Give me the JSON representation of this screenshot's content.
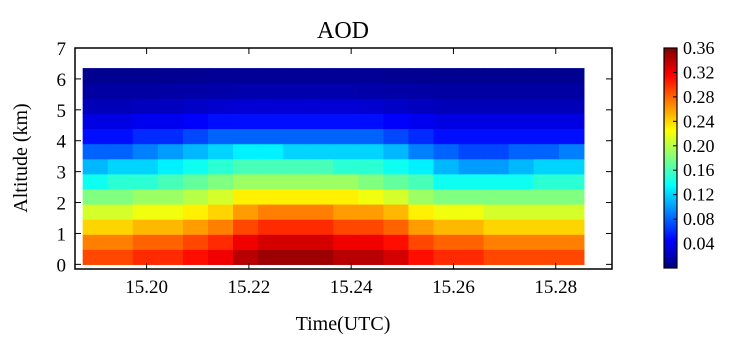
{
  "chart_data": {
    "type": "heatmap",
    "title": "AOD",
    "xlabel": "Time(UTC)",
    "ylabel": "Altitude (km)",
    "xlim": [
      15.186,
      15.291
    ],
    "ylim": [
      -0.15,
      7
    ],
    "x_ticks": [
      15.2,
      15.22,
      15.24,
      15.26,
      15.28
    ],
    "x_tick_labels": [
      "15.20",
      "15.22",
      "15.24",
      "15.26",
      "15.28"
    ],
    "y_ticks": [
      0,
      1,
      2,
      3,
      4,
      5,
      6,
      7
    ],
    "y_tick_labels": [
      "0",
      "1",
      "2",
      "3",
      "4",
      "5",
      "6",
      "7"
    ],
    "data_extent": {
      "x": [
        15.1875,
        15.2855
      ],
      "y": [
        0.0,
        6.35
      ]
    },
    "colormap": "jet",
    "colorbar": {
      "range": [
        0.0,
        0.36
      ],
      "ticks": [
        0.04,
        0.08,
        0.12,
        0.16,
        0.2,
        0.24,
        0.28,
        0.32,
        0.36
      ],
      "tick_labels": [
        "0.04",
        "0.08",
        "0.12",
        "0.16",
        "0.20",
        "0.24",
        "0.28",
        "0.32",
        "0.36"
      ]
    },
    "grid": false,
    "time_columns": [
      15.19,
      15.195,
      15.2,
      15.205,
      15.21,
      15.215,
      15.22,
      15.225,
      15.23,
      15.235,
      15.24,
      15.245,
      15.25,
      15.255,
      15.26,
      15.265,
      15.27,
      15.275,
      15.28,
      15.285
    ],
    "altitude_rows_km": [
      0.0,
      0.5,
      1.0,
      1.5,
      2.0,
      2.5,
      3.0,
      3.5,
      4.0,
      4.5,
      5.0,
      5.5,
      6.0
    ],
    "aod_values": [
      [
        0.29,
        0.29,
        0.3,
        0.3,
        0.31,
        0.32,
        0.34,
        0.35,
        0.35,
        0.35,
        0.34,
        0.34,
        0.33,
        0.31,
        0.3,
        0.3,
        0.29,
        0.29,
        0.29,
        0.29
      ],
      [
        0.27,
        0.27,
        0.28,
        0.28,
        0.29,
        0.3,
        0.32,
        0.33,
        0.33,
        0.33,
        0.32,
        0.32,
        0.31,
        0.29,
        0.28,
        0.28,
        0.27,
        0.27,
        0.27,
        0.27
      ],
      [
        0.24,
        0.24,
        0.25,
        0.25,
        0.26,
        0.27,
        0.29,
        0.3,
        0.3,
        0.3,
        0.29,
        0.29,
        0.28,
        0.26,
        0.25,
        0.25,
        0.24,
        0.24,
        0.24,
        0.24
      ],
      [
        0.21,
        0.21,
        0.22,
        0.22,
        0.23,
        0.24,
        0.26,
        0.27,
        0.27,
        0.27,
        0.26,
        0.26,
        0.25,
        0.23,
        0.22,
        0.22,
        0.21,
        0.21,
        0.21,
        0.21
      ],
      [
        0.18,
        0.18,
        0.19,
        0.19,
        0.2,
        0.21,
        0.23,
        0.23,
        0.23,
        0.23,
        0.23,
        0.22,
        0.21,
        0.19,
        0.18,
        0.18,
        0.18,
        0.18,
        0.18,
        0.18
      ],
      [
        0.14,
        0.15,
        0.15,
        0.16,
        0.17,
        0.18,
        0.19,
        0.19,
        0.19,
        0.19,
        0.19,
        0.18,
        0.17,
        0.16,
        0.14,
        0.14,
        0.14,
        0.14,
        0.15,
        0.15
      ],
      [
        0.11,
        0.12,
        0.12,
        0.13,
        0.14,
        0.15,
        0.16,
        0.16,
        0.16,
        0.16,
        0.15,
        0.15,
        0.14,
        0.13,
        0.11,
        0.1,
        0.1,
        0.11,
        0.12,
        0.12
      ],
      [
        0.08,
        0.08,
        0.09,
        0.1,
        0.11,
        0.12,
        0.13,
        0.13,
        0.12,
        0.12,
        0.12,
        0.12,
        0.11,
        0.09,
        0.08,
        0.07,
        0.07,
        0.08,
        0.08,
        0.09
      ],
      [
        0.05,
        0.05,
        0.06,
        0.06,
        0.07,
        0.08,
        0.08,
        0.08,
        0.08,
        0.08,
        0.08,
        0.08,
        0.07,
        0.06,
        0.05,
        0.05,
        0.05,
        0.05,
        0.05,
        0.05
      ],
      [
        0.035,
        0.035,
        0.04,
        0.04,
        0.045,
        0.05,
        0.05,
        0.05,
        0.05,
        0.05,
        0.05,
        0.05,
        0.045,
        0.04,
        0.035,
        0.035,
        0.035,
        0.035,
        0.035,
        0.035
      ],
      [
        0.02,
        0.02,
        0.022,
        0.022,
        0.025,
        0.028,
        0.03,
        0.03,
        0.03,
        0.03,
        0.03,
        0.028,
        0.025,
        0.022,
        0.02,
        0.02,
        0.02,
        0.02,
        0.02,
        0.02
      ],
      [
        0.012,
        0.012,
        0.012,
        0.013,
        0.014,
        0.015,
        0.016,
        0.016,
        0.016,
        0.016,
        0.016,
        0.015,
        0.014,
        0.013,
        0.012,
        0.012,
        0.012,
        0.012,
        0.012,
        0.012
      ],
      [
        0.006,
        0.006,
        0.006,
        0.007,
        0.007,
        0.008,
        0.008,
        0.008,
        0.008,
        0.008,
        0.008,
        0.008,
        0.007,
        0.007,
        0.006,
        0.006,
        0.006,
        0.006,
        0.006,
        0.006
      ]
    ]
  }
}
